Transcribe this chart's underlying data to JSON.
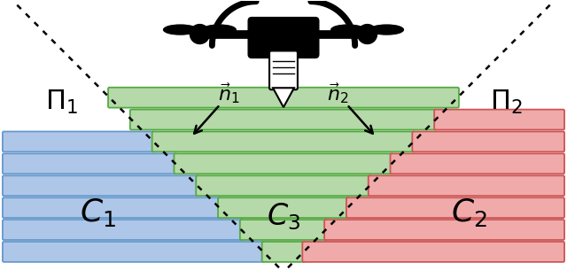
{
  "figsize": [
    6.4,
    3.14
  ],
  "dpi": 100,
  "bg_color": "#ffffff",
  "blue_color": "#aec6e8",
  "blue_edge": "#6699cc",
  "green_color": "#b5d9a8",
  "green_edge": "#55aa44",
  "red_color": "#f0aaaa",
  "red_edge": "#cc5555",
  "plane1_label": "$\\Pi_1$",
  "plane2_label": "$\\Pi_2$",
  "c1_label": "$C_1$",
  "c2_label": "$C_2$",
  "c3_label": "$C_3$",
  "n1_label": "$\\vec{n}_1$",
  "n2_label": "$\\vec{n}_2$"
}
